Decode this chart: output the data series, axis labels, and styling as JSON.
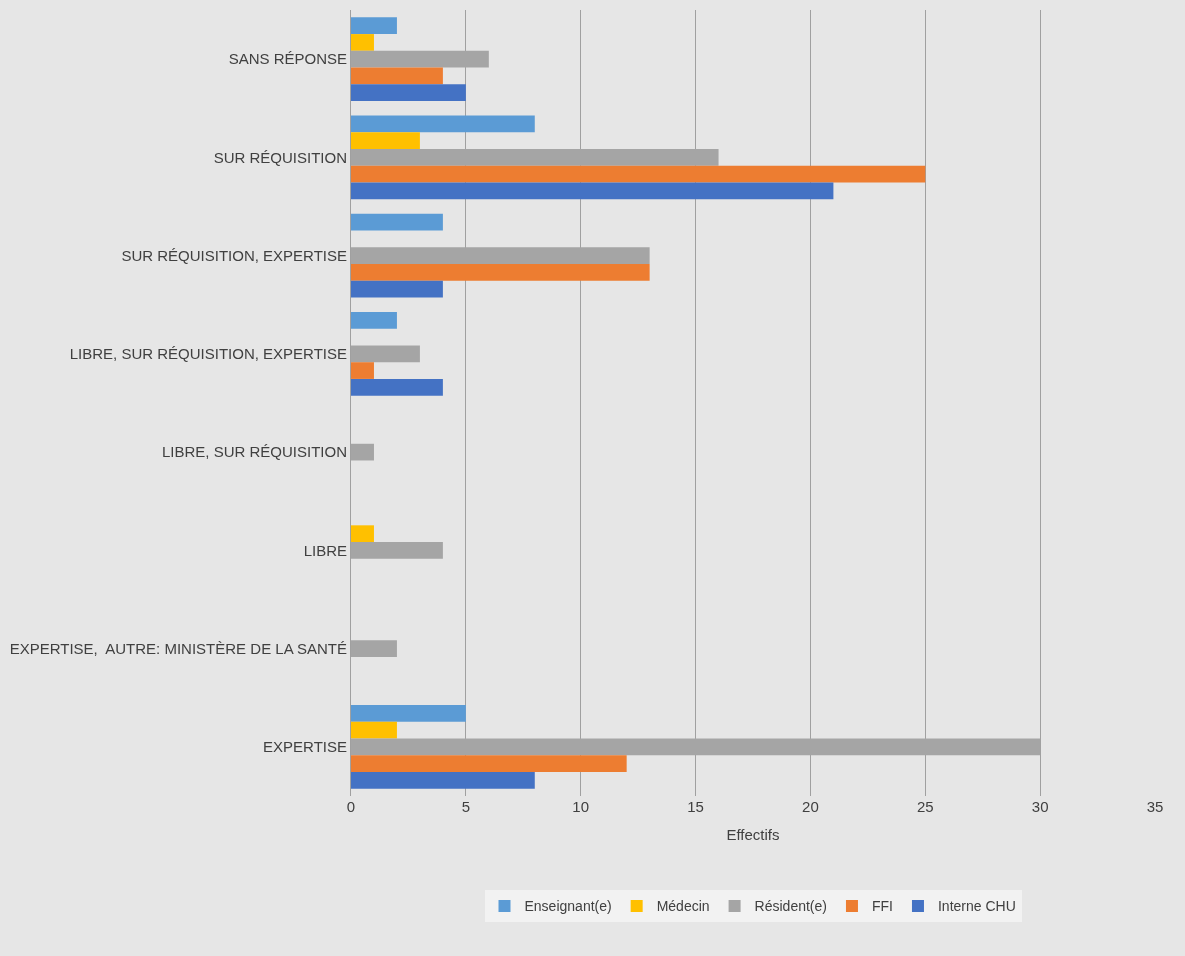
{
  "chart_data": {
    "type": "bar",
    "orientation": "horizontal",
    "categories": [
      "SANS RÉPONSE",
      "SUR RÉQUISITION",
      "SUR RÉQUISITION, EXPERTISE",
      "LIBRE, SUR RÉQUISITION, EXPERTISE",
      "LIBRE, SUR RÉQUISITION",
      "LIBRE",
      "EXPERTISE,  AUTRE: MINISTÈRE DE LA SANTÉ",
      "EXPERTISE"
    ],
    "series": [
      {
        "name": "Enseignant(e)",
        "color": "#5b9bd5",
        "values": [
          2,
          8,
          4,
          2,
          0,
          0,
          0,
          5
        ]
      },
      {
        "name": "Médecin",
        "color": "#ffc000",
        "values": [
          1,
          3,
          0,
          0,
          0,
          1,
          0,
          2
        ]
      },
      {
        "name": "Résident(e)",
        "color": "#a5a5a5",
        "values": [
          6,
          16,
          13,
          3,
          1,
          4,
          2,
          30
        ]
      },
      {
        "name": "FFI",
        "color": "#ed7d31",
        "values": [
          4,
          25,
          13,
          1,
          0,
          0,
          0,
          12
        ]
      },
      {
        "name": "Interne CHU",
        "color": "#4472c4",
        "values": [
          5,
          21,
          4,
          4,
          0,
          0,
          0,
          8
        ]
      }
    ],
    "xlabel": "Effectifs",
    "xlim": [
      0,
      35
    ],
    "xticks": [
      0,
      5,
      10,
      15,
      20,
      25,
      30,
      35
    ],
    "grid": "x",
    "legend": "bottom"
  }
}
